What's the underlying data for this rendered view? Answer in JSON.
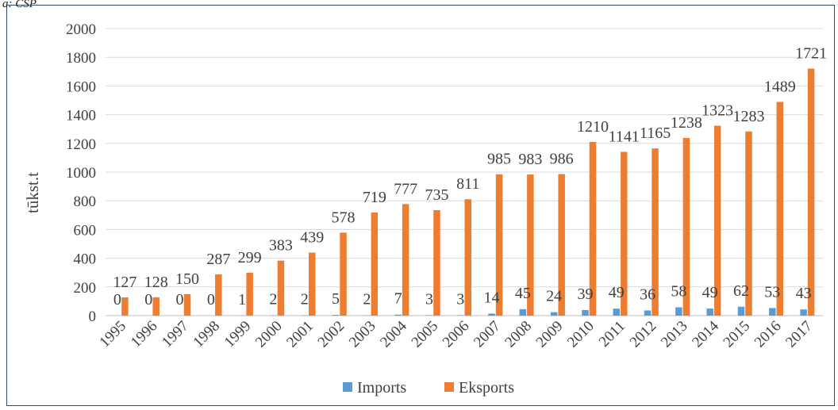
{
  "source_note": "a: CSP",
  "chart_data": {
    "type": "bar",
    "title": "",
    "xlabel": "",
    "ylabel": "tūkst.t",
    "ylim": [
      0,
      2000
    ],
    "yticks": [
      0,
      200,
      400,
      600,
      800,
      1000,
      1200,
      1400,
      1600,
      1800,
      2000
    ],
    "grid": true,
    "legend_position": "bottom",
    "categories": [
      "1995",
      "1996",
      "1997",
      "1998",
      "1999",
      "2000",
      "2001",
      "2002",
      "2003",
      "2004",
      "2005",
      "2006",
      "2007",
      "2008",
      "2009",
      "2010",
      "2011",
      "2012",
      "2013",
      "2014",
      "2015",
      "2016",
      "2017"
    ],
    "series": [
      {
        "name": "Imports",
        "color": "#5b9bd5",
        "values": [
          0,
          0,
          0,
          0,
          1,
          2,
          2,
          5,
          2,
          7,
          3,
          3,
          14,
          45,
          24,
          39,
          49,
          36,
          58,
          49,
          62,
          53,
          43
        ]
      },
      {
        "name": "Eksports",
        "color": "#ed7d31",
        "values": [
          127,
          128,
          150,
          287,
          299,
          383,
          439,
          578,
          719,
          777,
          735,
          811,
          985,
          983,
          986,
          1210,
          1141,
          1165,
          1238,
          1323,
          1283,
          1489,
          1721
        ]
      }
    ]
  }
}
